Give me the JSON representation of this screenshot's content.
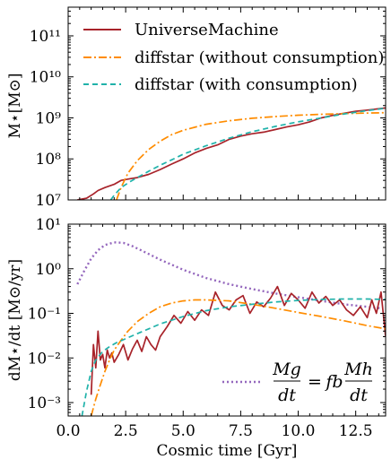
{
  "figure": {
    "xlabel": "Cosmic time [Gyr]",
    "x_tick_labels": [
      "0.0",
      "2.5",
      "5.0",
      "7.5",
      "10.0",
      "12.5"
    ]
  },
  "colors": {
    "universemachine": "#a8232a",
    "diffstar_without": "#ff8c00",
    "diffstar_with": "#20b2aa",
    "accretion": "#9467bd"
  },
  "chart_data": [
    {
      "type": "line",
      "ylabel": "M⋆[M⊙]",
      "y_scale": "log",
      "xlim": [
        0,
        13.8
      ],
      "ylim": [
        10000000.0,
        500000000000.0
      ],
      "y_tick_labels": [
        "10⁷",
        "10⁸",
        "10⁹",
        "10¹⁰",
        "10¹¹"
      ],
      "legend_position": "top-left",
      "series": [
        {
          "name": "UniverseMachine",
          "style": "solid",
          "color_key": "universemachine",
          "x": [
            0.4,
            0.8,
            1.1,
            1.3,
            1.6,
            2.0,
            2.3,
            2.7,
            3.0,
            3.5,
            4.0,
            4.5,
            5.0,
            5.5,
            6.0,
            6.5,
            7.0,
            7.5,
            8.0,
            8.5,
            9.0,
            9.5,
            10.0,
            10.5,
            11.0,
            11.5,
            12.0,
            12.5,
            13.0,
            13.8
          ],
          "y": [
            10000000.0,
            11000000.0,
            14000000.0,
            17000000.0,
            20000000.0,
            24000000.0,
            30000000.0,
            33000000.0,
            35000000.0,
            42000000.0,
            55000000.0,
            75000000.0,
            100000000.0,
            140000000.0,
            180000000.0,
            220000000.0,
            300000000.0,
            360000000.0,
            410000000.0,
            450000000.0,
            520000000.0,
            600000000.0,
            680000000.0,
            800000000.0,
            1000000000.0,
            1150000000.0,
            1300000000.0,
            1450000000.0,
            1550000000.0,
            1750000000.0
          ]
        },
        {
          "name": "diffstar (without consumption)",
          "style": "dashdot",
          "color_key": "diffstar_without",
          "x": [
            2.1,
            2.3,
            2.6,
            3.0,
            3.5,
            4.0,
            4.5,
            5.0,
            6.0,
            7.0,
            8.0,
            9.0,
            10.0,
            11.0,
            12.0,
            13.0,
            13.8
          ],
          "y": [
            10000000.0,
            20000000.0,
            45000000.0,
            90000000.0,
            170000000.0,
            270000000.0,
            390000000.0,
            500000000.0,
            700000000.0,
            850000000.0,
            980000000.0,
            1080000000.0,
            1160000000.0,
            1220000000.0,
            1270000000.0,
            1310000000.0,
            1340000000.0
          ]
        },
        {
          "name": "diffstar (with consumption)",
          "style": "dashed",
          "color_key": "diffstar_with",
          "x": [
            1.85,
            2.0,
            2.3,
            2.7,
            3.0,
            3.5,
            4.0,
            4.5,
            5.0,
            6.0,
            7.0,
            8.0,
            9.0,
            10.0,
            11.0,
            12.0,
            13.0,
            13.8
          ],
          "y": [
            10000000.0,
            13000000.0,
            20000000.0,
            28000000.0,
            35000000.0,
            50000000.0,
            70000000.0,
            95000000.0,
            130000000.0,
            210000000.0,
            320000000.0,
            460000000.0,
            620000000.0,
            800000000.0,
            1000000000.0,
            1250000000.0,
            1500000000.0,
            1720000000.0
          ]
        }
      ]
    },
    {
      "type": "line",
      "ylabel": "dM⋆/dt [M⊙/yr]",
      "xlabel": "Cosmic time [Gyr]",
      "y_scale": "log",
      "xlim": [
        0,
        13.8
      ],
      "ylim": [
        0.0005,
        10
      ],
      "y_tick_labels": [
        "10⁻³",
        "10⁻²",
        "10⁻¹",
        "10⁰",
        "10¹"
      ],
      "legend_position": "bottom-right",
      "legend_equation": {
        "lhs_num": "Mg",
        "lhs_den": "dt",
        "equals": "=",
        "coef": "fb",
        "rhs_num": "Mh",
        "rhs_den": "dt"
      },
      "series": [
        {
          "name": "Mg/dt = fb Mh/dt",
          "style": "dotted",
          "color_key": "accretion",
          "x": [
            0.4,
            0.7,
            1.0,
            1.3,
            1.6,
            2.0,
            2.4,
            2.8,
            3.3,
            4.0,
            5.0,
            6.0,
            7.0,
            8.0,
            9.0,
            10.0,
            11.0,
            12.0,
            13.0,
            13.6
          ],
          "y": [
            0.45,
            0.9,
            1.7,
            2.6,
            3.4,
            3.9,
            3.8,
            3.2,
            2.4,
            1.6,
            0.95,
            0.62,
            0.45,
            0.35,
            0.28,
            0.23,
            0.19,
            0.16,
            0.14,
            0.13
          ]
        },
        {
          "name": "UniverseMachine",
          "style": "solid",
          "color_key": "universemachine",
          "x": [
            1.0,
            1.1,
            1.2,
            1.3,
            1.4,
            1.5,
            1.6,
            1.7,
            1.8,
            1.9,
            2.0,
            2.2,
            2.4,
            2.6,
            2.8,
            3.0,
            3.2,
            3.4,
            3.6,
            3.8,
            4.0,
            4.3,
            4.6,
            4.9,
            5.2,
            5.5,
            5.8,
            6.1,
            6.4,
            6.7,
            7.0,
            7.3,
            7.6,
            7.9,
            8.2,
            8.5,
            8.8,
            9.1,
            9.4,
            9.7,
            10.0,
            10.3,
            10.6,
            10.9,
            11.2,
            11.5,
            11.8,
            12.1,
            12.4,
            12.7,
            13.0,
            13.2,
            13.4,
            13.6,
            13.8
          ],
          "y": [
            0.0015,
            0.02,
            0.006,
            0.04,
            0.009,
            0.012,
            0.006,
            0.015,
            0.01,
            0.013,
            0.008,
            0.012,
            0.02,
            0.009,
            0.016,
            0.025,
            0.014,
            0.03,
            0.02,
            0.015,
            0.03,
            0.05,
            0.09,
            0.06,
            0.11,
            0.07,
            0.12,
            0.09,
            0.3,
            0.15,
            0.12,
            0.2,
            0.25,
            0.1,
            0.18,
            0.14,
            0.22,
            0.4,
            0.15,
            0.28,
            0.2,
            0.13,
            0.3,
            0.17,
            0.24,
            0.15,
            0.2,
            0.12,
            0.09,
            0.14,
            0.08,
            0.2,
            0.1,
            0.3,
            0.03
          ]
        },
        {
          "name": "diffstar (without consumption)",
          "style": "dashdot",
          "color_key": "diffstar_without",
          "x": [
            1.0,
            1.2,
            1.4,
            1.6,
            1.8,
            2.0,
            2.3,
            2.6,
            3.0,
            3.5,
            4.0,
            4.5,
            5.0,
            5.5,
            6.0,
            7.0,
            8.0,
            9.0,
            10.0,
            11.0,
            12.0,
            13.0,
            13.8
          ],
          "y": [
            0.0005,
            0.0012,
            0.0025,
            0.005,
            0.009,
            0.015,
            0.025,
            0.04,
            0.065,
            0.1,
            0.14,
            0.17,
            0.19,
            0.2,
            0.2,
            0.19,
            0.16,
            0.13,
            0.105,
            0.085,
            0.068,
            0.053,
            0.045
          ]
        },
        {
          "name": "diffstar (with consumption)",
          "style": "dashed",
          "color_key": "diffstar_with",
          "x": [
            0.6,
            0.8,
            1.0,
            1.2,
            1.5,
            1.8,
            2.1,
            2.5,
            3.0,
            3.5,
            4.0,
            5.0,
            6.0,
            7.0,
            8.0,
            9.0,
            10.0,
            11.0,
            12.0,
            13.0,
            13.8
          ],
          "y": [
            0.0005,
            0.0018,
            0.005,
            0.009,
            0.014,
            0.018,
            0.022,
            0.027,
            0.035,
            0.045,
            0.058,
            0.085,
            0.115,
            0.14,
            0.16,
            0.18,
            0.195,
            0.205,
            0.21,
            0.21,
            0.205
          ]
        }
      ]
    }
  ]
}
